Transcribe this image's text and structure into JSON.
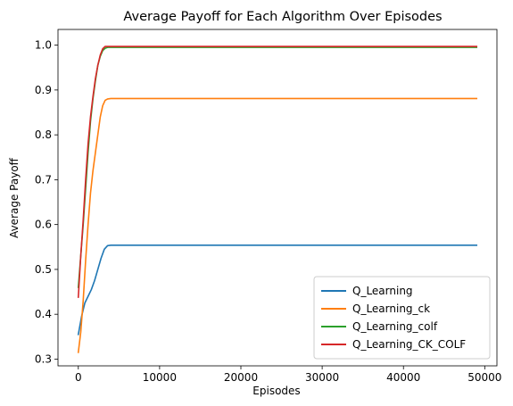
{
  "chart_data": {
    "type": "line",
    "title": "Average Payoff for Each Algorithm Over Episodes",
    "xlabel": "Episodes",
    "ylabel": "Average Payoff",
    "xlim": [
      -2500,
      51500
    ],
    "ylim": [
      0.285,
      1.035
    ],
    "xticks": [
      0,
      10000,
      20000,
      30000,
      40000,
      50000
    ],
    "xtick_labels": [
      "0",
      "10000",
      "20000",
      "30000",
      "40000",
      "50000"
    ],
    "yticks": [
      0.3,
      0.4,
      0.5,
      0.6,
      0.7,
      0.8,
      0.9,
      1.0
    ],
    "ytick_labels": [
      "0.3",
      "0.4",
      "0.5",
      "0.6",
      "0.7",
      "0.8",
      "0.9",
      "1.0"
    ],
    "grid": false,
    "legend_position": "lower-right",
    "series": [
      {
        "name": "Q_Learning",
        "color": "#1f77b4",
        "x": [
          0,
          400,
          800,
          1200,
          1600,
          2000,
          2400,
          2800,
          3200,
          3600,
          4000,
          5000,
          10000,
          15000,
          20000,
          25000,
          30000,
          35000,
          40000,
          45000,
          49000
        ],
        "y": [
          0.355,
          0.395,
          0.425,
          0.44,
          0.455,
          0.475,
          0.5,
          0.525,
          0.545,
          0.553,
          0.554,
          0.554,
          0.554,
          0.554,
          0.554,
          0.554,
          0.554,
          0.554,
          0.554,
          0.554,
          0.554
        ]
      },
      {
        "name": "Q_Learning_ck",
        "color": "#ff7f0e",
        "x": [
          0,
          300,
          600,
          900,
          1200,
          1500,
          1800,
          2100,
          2400,
          2700,
          3000,
          3300,
          3600,
          4000,
          5000,
          10000,
          15000,
          20000,
          25000,
          30000,
          35000,
          40000,
          45000,
          49000
        ],
        "y": [
          0.315,
          0.36,
          0.43,
          0.52,
          0.6,
          0.67,
          0.72,
          0.76,
          0.8,
          0.84,
          0.865,
          0.877,
          0.88,
          0.881,
          0.881,
          0.881,
          0.881,
          0.881,
          0.881,
          0.881,
          0.881,
          0.881,
          0.881,
          0.881
        ]
      },
      {
        "name": "Q_Learning_colf",
        "color": "#2ca02c",
        "x": [
          0,
          300,
          600,
          900,
          1200,
          1500,
          1800,
          2100,
          2400,
          2700,
          3000,
          3300,
          3600,
          4000,
          5000,
          10000,
          15000,
          20000,
          25000,
          30000,
          35000,
          40000,
          45000,
          49000
        ],
        "y": [
          0.46,
          0.53,
          0.6,
          0.68,
          0.76,
          0.83,
          0.88,
          0.92,
          0.955,
          0.975,
          0.988,
          0.993,
          0.995,
          0.995,
          0.995,
          0.995,
          0.995,
          0.995,
          0.995,
          0.995,
          0.995,
          0.995,
          0.995,
          0.995
        ]
      },
      {
        "name": "Q_Learning_CK_COLF",
        "color": "#d62728",
        "x": [
          0,
          300,
          600,
          900,
          1200,
          1500,
          1800,
          2100,
          2400,
          2700,
          3000,
          3300,
          3600,
          4000,
          5000,
          10000,
          15000,
          20000,
          25000,
          30000,
          35000,
          40000,
          45000,
          49000
        ],
        "y": [
          0.438,
          0.53,
          0.61,
          0.7,
          0.78,
          0.84,
          0.885,
          0.925,
          0.955,
          0.978,
          0.992,
          0.997,
          0.997,
          0.997,
          0.997,
          0.997,
          0.997,
          0.997,
          0.997,
          0.997,
          0.997,
          0.997,
          0.997,
          0.997
        ]
      }
    ]
  }
}
